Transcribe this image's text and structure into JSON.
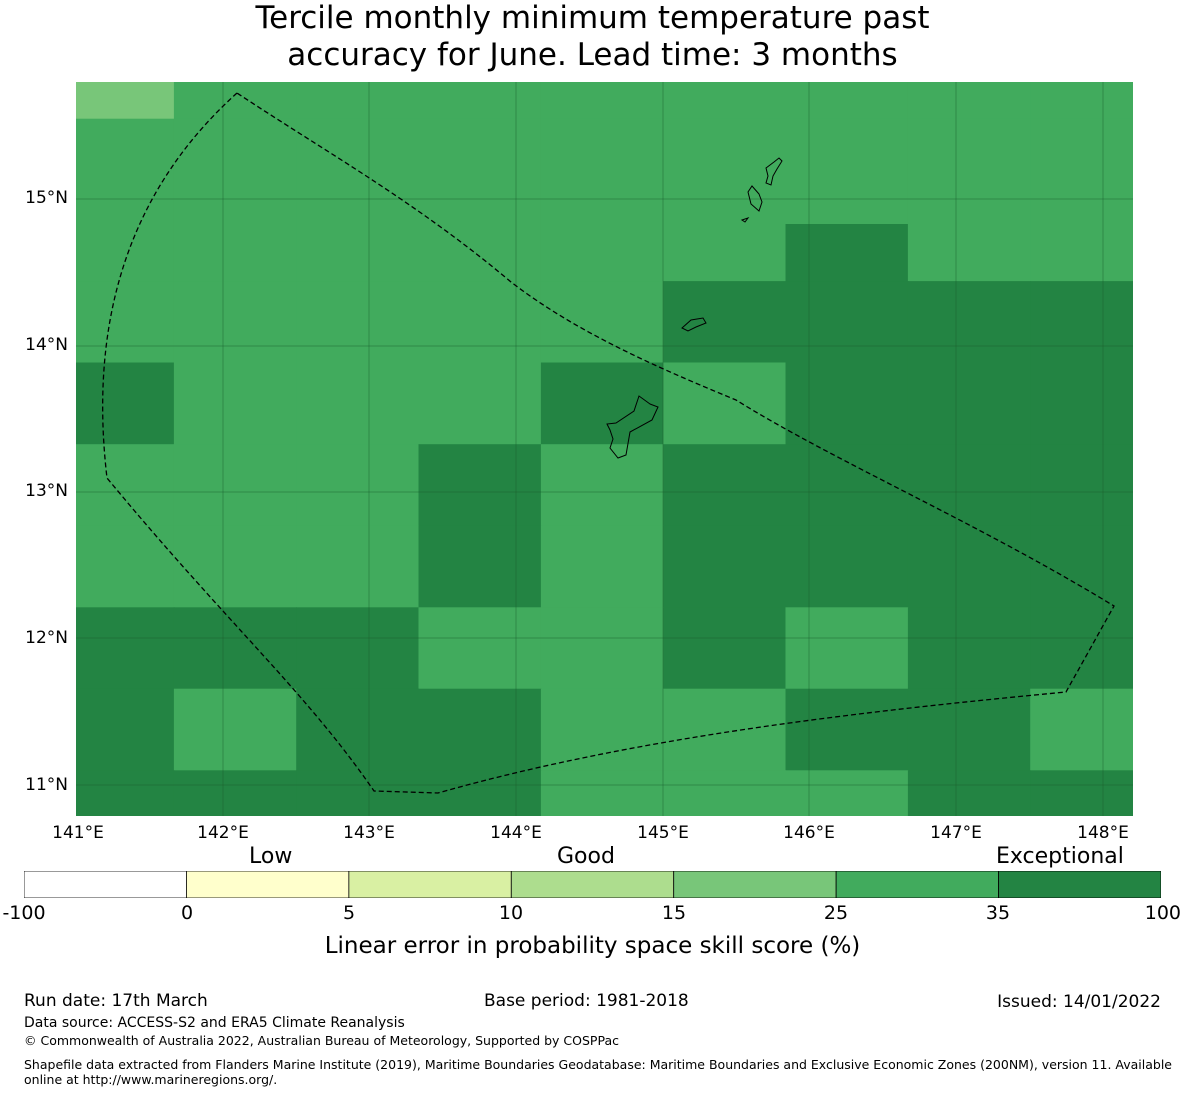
{
  "title_line1": "Tercile monthly minimum temperature past",
  "title_line2": "accuracy for June. Lead time: 3 months",
  "map": {
    "lon_range": [
      141.0,
      148.2
    ],
    "lat_range": [
      10.8,
      15.8
    ],
    "lon_ticks": [
      "141°E",
      "142°E",
      "143°E",
      "144°E",
      "145°E",
      "146°E",
      "147°E",
      "148°E"
    ],
    "lat_ticks": [
      "15°N",
      "14°N",
      "13°N",
      "12°N",
      "11°N"
    ],
    "category_colors": {
      "light": "#78c679",
      "medium": "#41ab5d",
      "dark": "#238443"
    },
    "cells": {
      "lon_edges": [
        141.0,
        141.667,
        142.5,
        143.333,
        144.167,
        145.0,
        145.833,
        146.667,
        147.5,
        148.2
      ],
      "lat_edges_top_to_bottom": [
        15.8,
        15.55,
        14.833,
        14.444,
        13.889,
        13.333,
        12.778,
        12.222,
        11.667,
        11.111,
        10.8
      ],
      "grid_top_to_bottom": [
        [
          "light",
          "medium",
          "medium",
          "medium",
          "medium",
          "medium",
          "medium",
          "medium",
          "medium"
        ],
        [
          "medium",
          "medium",
          "medium",
          "medium",
          "medium",
          "medium",
          "medium",
          "medium",
          "medium"
        ],
        [
          "medium",
          "medium",
          "medium",
          "medium",
          "medium",
          "medium",
          "dark",
          "medium",
          "medium"
        ],
        [
          "medium",
          "medium",
          "medium",
          "medium",
          "medium",
          "dark",
          "dark",
          "dark",
          "dark"
        ],
        [
          "dark",
          "medium",
          "medium",
          "medium",
          "dark",
          "medium",
          "dark",
          "dark",
          "dark"
        ],
        [
          "medium",
          "medium",
          "medium",
          "dark",
          "medium",
          "dark",
          "dark",
          "dark",
          "dark"
        ],
        [
          "medium",
          "medium",
          "medium",
          "dark",
          "medium",
          "dark",
          "dark",
          "dark",
          "dark"
        ],
        [
          "dark",
          "dark",
          "dark",
          "medium",
          "medium",
          "dark",
          "medium",
          "dark",
          "dark"
        ],
        [
          "dark",
          "medium",
          "dark",
          "dark",
          "medium",
          "medium",
          "dark",
          "dark",
          "medium"
        ],
        [
          "dark",
          "dark",
          "dark",
          "dark",
          "medium",
          "medium",
          "medium",
          "dark",
          "dark"
        ]
      ]
    }
  },
  "colorbar": {
    "category_words": [
      "Low",
      "Good",
      "Exceptional"
    ],
    "ticks": [
      "-100",
      "0",
      "5",
      "10",
      "15",
      "25",
      "35",
      "100"
    ],
    "colors": [
      "#ffffff",
      "#ffffcc",
      "#d9f0a3",
      "#addd8e",
      "#78c679",
      "#41ab5d",
      "#238443"
    ],
    "label": "Linear error in probability space skill score (%)"
  },
  "footer": {
    "run_date": "Run date: 17th March",
    "base_period": "Base period: 1981-2018",
    "issued": "Issued: 14/01/2022",
    "data_source": "Data source: ACCESS-S2 and ERA5 Climate Reanalysis",
    "copyright": "© Commonwealth of Australia 2022, Australian Bureau of Meteorology, Supported by COSPPac",
    "shapefile_note": "Shapefile data extracted from Flanders Marine Institute (2019), Maritime Boundaries Geodatabase: Maritime Boundaries and Exclusive Economic Zones (200NM), version 11. Available online at http://www.marineregions.org/."
  }
}
